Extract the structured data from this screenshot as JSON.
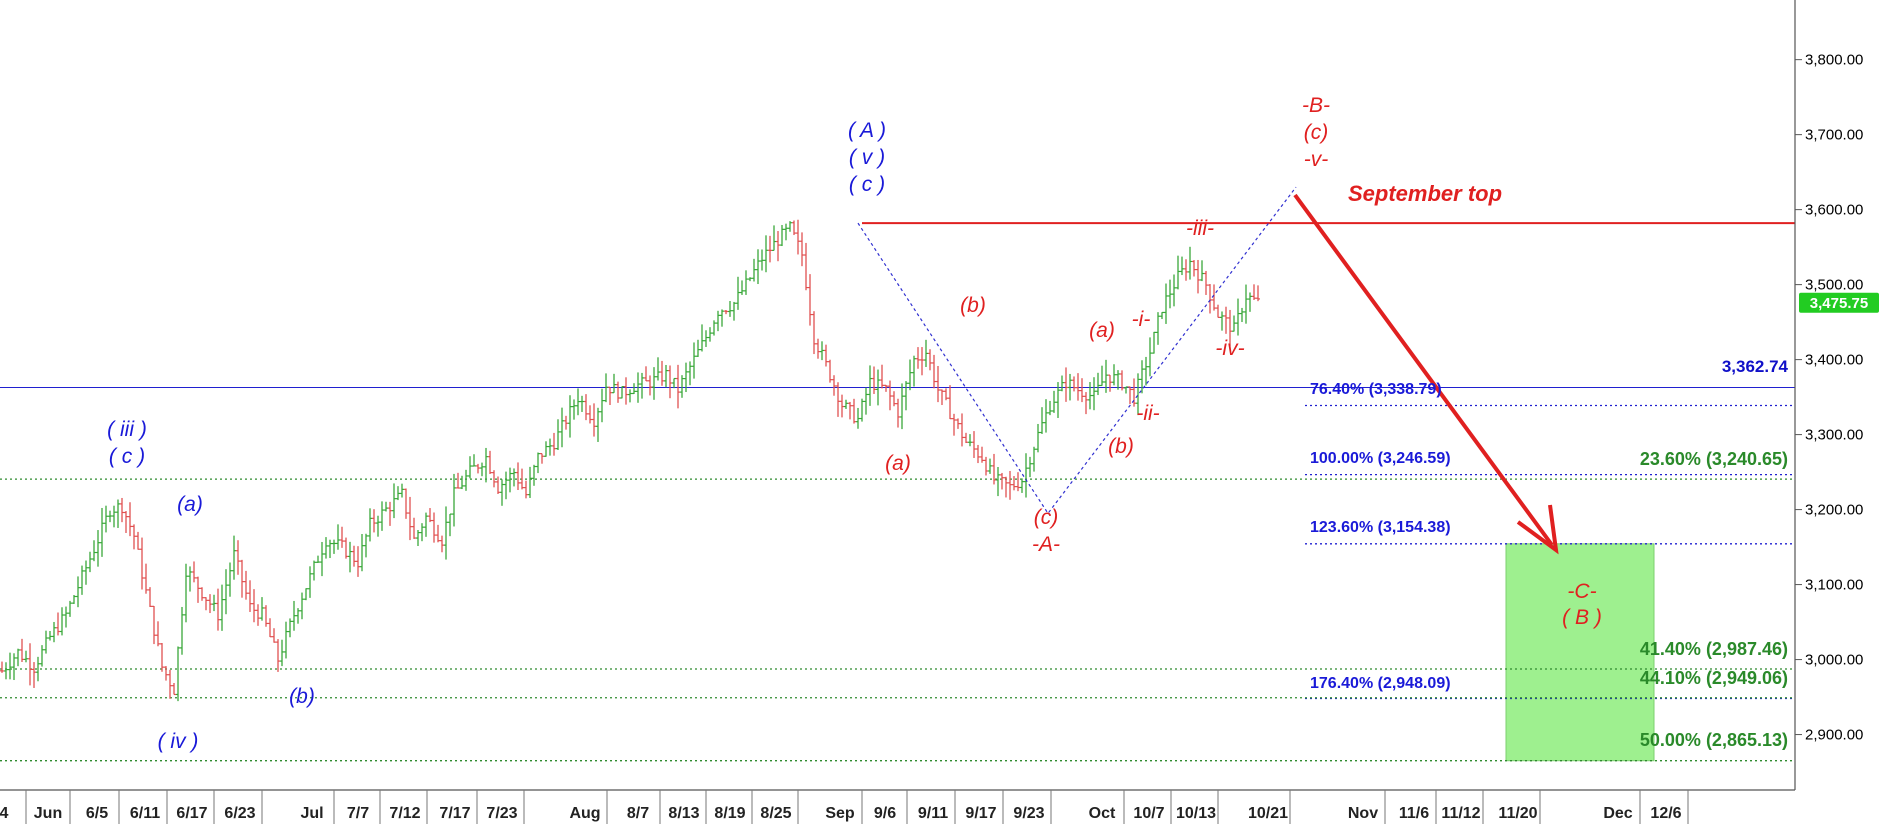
{
  "chart_data": {
    "type": "candlestick",
    "y_axis": {
      "ticks": [
        "3,800.00",
        "3,700.00",
        "3,600.00",
        "3,500.00",
        "3,400.00",
        "3,300.00",
        "3,200.00",
        "3,100.00",
        "3,000.00",
        "2,900.00"
      ],
      "range": [
        2820,
        3880
      ]
    },
    "x_axis": {
      "ticks": [
        "4",
        "Jun",
        "6/5",
        "6/11",
        "6/17",
        "6/23",
        "Jul",
        "7/7",
        "7/12",
        "7/17",
        "7/23",
        "Aug",
        "8/7",
        "8/13",
        "8/19",
        "8/25",
        "Sep",
        "9/6",
        "9/11",
        "9/17",
        "9/23",
        "Oct",
        "10/7",
        "10/13",
        "10/21",
        "Nov",
        "11/6",
        "11/12",
        "11/20",
        "Dec",
        "12/6"
      ]
    },
    "last_price": "3,475.75",
    "ohlc_anchors": [
      [
        0,
        2985
      ],
      [
        4,
        3010
      ],
      [
        8,
        2990
      ],
      [
        12,
        3030
      ],
      [
        16,
        3060
      ],
      [
        20,
        3110
      ],
      [
        24,
        3160
      ],
      [
        27,
        3200
      ],
      [
        30,
        3205
      ],
      [
        33,
        3165
      ],
      [
        36,
        3090
      ],
      [
        40,
        2990
      ],
      [
        43,
        2960
      ],
      [
        46,
        3120
      ],
      [
        50,
        3090
      ],
      [
        54,
        3060
      ],
      [
        58,
        3140
      ],
      [
        62,
        3070
      ],
      [
        65,
        3060
      ],
      [
        69,
        3000
      ],
      [
        73,
        3060
      ],
      [
        77,
        3110
      ],
      [
        81,
        3160
      ],
      [
        85,
        3150
      ],
      [
        89,
        3130
      ],
      [
        92,
        3180
      ],
      [
        96,
        3200
      ],
      [
        100,
        3220
      ],
      [
        103,
        3160
      ],
      [
        106,
        3190
      ],
      [
        110,
        3160
      ],
      [
        113,
        3220
      ],
      [
        117,
        3250
      ],
      [
        121,
        3270
      ],
      [
        124,
        3230
      ],
      [
        128,
        3250
      ],
      [
        131,
        3220
      ],
      [
        134,
        3270
      ],
      [
        138,
        3290
      ],
      [
        141,
        3320
      ],
      [
        144,
        3350
      ],
      [
        148,
        3320
      ],
      [
        151,
        3365
      ],
      [
        155,
        3355
      ],
      [
        158,
        3365
      ],
      [
        162,
        3370
      ],
      [
        166,
        3380
      ],
      [
        169,
        3360
      ],
      [
        172,
        3390
      ],
      [
        176,
        3430
      ],
      [
        179,
        3465
      ],
      [
        183,
        3475
      ],
      [
        186,
        3500
      ],
      [
        190,
        3535
      ],
      [
        194,
        3560
      ],
      [
        197,
        3575
      ],
      [
        200,
        3540
      ],
      [
        203,
        3430
      ],
      [
        207,
        3380
      ],
      [
        210,
        3340
      ],
      [
        214,
        3320
      ],
      [
        217,
        3370
      ],
      [
        221,
        3360
      ],
      [
        224,
        3330
      ],
      [
        228,
        3400
      ],
      [
        231,
        3410
      ],
      [
        234,
        3360
      ],
      [
        238,
        3320
      ],
      [
        241,
        3290
      ],
      [
        245,
        3270
      ],
      [
        248,
        3240
      ],
      [
        252,
        3230
      ],
      [
        255,
        3240
      ],
      [
        259,
        3300
      ],
      [
        262,
        3340
      ],
      [
        266,
        3370
      ],
      [
        269,
        3360
      ],
      [
        273,
        3350
      ],
      [
        276,
        3380
      ],
      [
        280,
        3370
      ],
      [
        283,
        3350
      ],
      [
        287,
        3410
      ],
      [
        290,
        3470
      ],
      [
        294,
        3510
      ],
      [
        297,
        3530
      ],
      [
        301,
        3500
      ],
      [
        304,
        3460
      ],
      [
        308,
        3440
      ],
      [
        311,
        3485
      ],
      [
        314,
        3476
      ]
    ],
    "levels": [
      {
        "value": 3582,
        "color": "#e02020",
        "style": "solid",
        "width": 2,
        "label": "September top",
        "label_color": "#e02020"
      },
      {
        "value": 3362.74,
        "color": "#2020d0",
        "style": "solid",
        "width": 1,
        "label": "3,362.74",
        "label_color": "#1010c8"
      },
      {
        "value": 3338.79,
        "label": "76.40% (3,338.79)",
        "color": "#2020d0",
        "style": "dotted"
      },
      {
        "value": 3246.59,
        "label": "100.00% (3,246.59)",
        "color": "#2020d0",
        "style": "dotted"
      },
      {
        "value": 3154.38,
        "label": "123.60% (3,154.38)",
        "color": "#2020d0",
        "style": "dotted"
      },
      {
        "value": 2948.09,
        "label": "176.40% (2,948.09)",
        "color": "#2020d0",
        "style": "dotted"
      },
      {
        "value": 3240.65,
        "label": "23.60% (3,240.65)",
        "color": "#2e8b2e",
        "style": "dotted"
      },
      {
        "value": 2987.46,
        "label": "41.40% (2,987.46)",
        "color": "#2e8b2e",
        "style": "dotted"
      },
      {
        "value": 2949.06,
        "label": "44.10% (2,949.06)",
        "color": "#2e8b2e",
        "style": "dotted"
      },
      {
        "value": 2865.13,
        "label": "50.00% (2,865.13)",
        "color": "#2e8b2e",
        "style": "dotted"
      }
    ],
    "target_zone": {
      "from": 2865.13,
      "to": 3154.38,
      "color": "#9ef08f",
      "label_lines": [
        "-C-",
        "( B )"
      ]
    },
    "wave_labels": [
      {
        "lines": [
          "( iii )",
          "( c )"
        ],
        "color": "#1a1ad8"
      },
      {
        "lines": [
          "(a)"
        ],
        "color": "#1a1ad8"
      },
      {
        "lines": [
          "( iv )"
        ],
        "color": "#1a1ad8"
      },
      {
        "lines": [
          "(b)"
        ],
        "color": "#1a1ad8"
      },
      {
        "lines": [
          "( A )",
          "( v )",
          "( c )"
        ],
        "color": "#1a1ad8"
      },
      {
        "lines": [
          "(b)"
        ],
        "color": "#e02020"
      },
      {
        "lines": [
          "(a)"
        ],
        "color": "#e02020"
      },
      {
        "lines": [
          "(c)",
          "-A-"
        ],
        "color": "#e02020"
      },
      {
        "lines": [
          "(a)"
        ],
        "color": "#e02020"
      },
      {
        "lines": [
          "-i-"
        ],
        "color": "#e02020"
      },
      {
        "lines": [
          "(b)"
        ],
        "color": "#e02020"
      },
      {
        "lines": [
          "-ii-"
        ],
        "color": "#e02020"
      },
      {
        "lines": [
          "-iii-"
        ],
        "color": "#e02020"
      },
      {
        "lines": [
          "-iv-"
        ],
        "color": "#e02020"
      },
      {
        "lines": [
          "-B-",
          "(c)",
          "-v-"
        ],
        "color": "#e02020"
      }
    ],
    "colors": {
      "up": "#3aa83a",
      "down": "#e05050",
      "price_box": "#22cc22"
    }
  }
}
